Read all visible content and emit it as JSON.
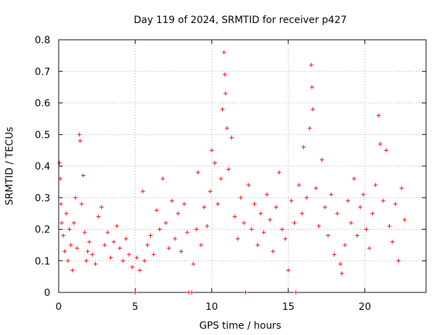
{
  "chart_data": {
    "type": "scatter",
    "title": "Day 119 of 2024, SRMTID for receiver p427",
    "xlabel": "GPS time / hours",
    "ylabel": "SRMTID / TECUs",
    "xlim": [
      0,
      24
    ],
    "ylim": [
      0,
      0.8
    ],
    "x_ticks": [
      0,
      5,
      10,
      15,
      20
    ],
    "y_ticks": [
      0,
      0.1,
      0.2,
      0.3,
      0.4,
      0.5,
      0.6,
      0.7,
      0.8
    ],
    "x_tick_labels": [
      "0",
      "5",
      "10",
      "15",
      "20"
    ],
    "y_tick_labels": [
      "0",
      "0.1",
      "0.2",
      "0.3",
      "0.4",
      "0.5",
      "0.6",
      "0.7",
      "0.8"
    ],
    "grid": true,
    "marker": "plus",
    "series": [
      {
        "name": "SRMTID",
        "color": "#ff0000",
        "points": [
          [
            0.05,
            0.41
          ],
          [
            0.1,
            0.36
          ],
          [
            0.15,
            0.28
          ],
          [
            0.2,
            0.22
          ],
          [
            0.3,
            0.18
          ],
          [
            0.4,
            0.13
          ],
          [
            0.5,
            0.25
          ],
          [
            0.6,
            0.1
          ],
          [
            0.7,
            0.2
          ],
          [
            0.8,
            0.15
          ],
          [
            0.9,
            0.07
          ],
          [
            1.0,
            0.22
          ],
          [
            1.1,
            0.3
          ],
          [
            1.2,
            0.14
          ],
          [
            1.35,
            0.5
          ],
          [
            1.4,
            0.48
          ],
          [
            1.5,
            0.28
          ],
          [
            1.6,
            0.37
          ],
          [
            1.7,
            0.19
          ],
          [
            1.8,
            0.1
          ],
          [
            1.9,
            0.13
          ],
          [
            2.0,
            0.16
          ],
          [
            2.2,
            0.12
          ],
          [
            2.4,
            0.09
          ],
          [
            2.6,
            0.24
          ],
          [
            2.8,
            0.27
          ],
          [
            3.0,
            0.15
          ],
          [
            3.2,
            0.19
          ],
          [
            3.4,
            0.11
          ],
          [
            3.6,
            0.16
          ],
          [
            3.8,
            0.21
          ],
          [
            4.0,
            0.14
          ],
          [
            4.2,
            0.1
          ],
          [
            4.4,
            0.17
          ],
          [
            4.6,
            0.12
          ],
          [
            4.8,
            0.08
          ],
          [
            5.0,
            0.0
          ],
          [
            5.1,
            0.11
          ],
          [
            5.3,
            0.07
          ],
          [
            5.5,
            0.32
          ],
          [
            5.6,
            0.1
          ],
          [
            5.8,
            0.15
          ],
          [
            6.0,
            0.18
          ],
          [
            6.2,
            0.12
          ],
          [
            6.4,
            0.26
          ],
          [
            6.6,
            0.2
          ],
          [
            6.8,
            0.36
          ],
          [
            7.0,
            0.22
          ],
          [
            7.2,
            0.14
          ],
          [
            7.4,
            0.29
          ],
          [
            7.6,
            0.17
          ],
          [
            7.8,
            0.25
          ],
          [
            8.0,
            0.13
          ],
          [
            8.2,
            0.28
          ],
          [
            8.4,
            0.19
          ],
          [
            8.5,
            0.0
          ],
          [
            8.7,
            0.0
          ],
          [
            8.8,
            0.09
          ],
          [
            9.0,
            0.2
          ],
          [
            9.1,
            0.38
          ],
          [
            9.3,
            0.15
          ],
          [
            9.5,
            0.27
          ],
          [
            9.7,
            0.21
          ],
          [
            9.9,
            0.32
          ],
          [
            10.0,
            0.45
          ],
          [
            10.2,
            0.41
          ],
          [
            10.4,
            0.28
          ],
          [
            10.6,
            0.36
          ],
          [
            10.7,
            0.58
          ],
          [
            10.8,
            0.76
          ],
          [
            10.85,
            0.69
          ],
          [
            10.9,
            0.63
          ],
          [
            11.0,
            0.52
          ],
          [
            11.1,
            0.39
          ],
          [
            11.3,
            0.49
          ],
          [
            11.5,
            0.24
          ],
          [
            11.7,
            0.17
          ],
          [
            11.9,
            0.3
          ],
          [
            12.1,
            0.22
          ],
          [
            12.2,
            0.0
          ],
          [
            12.4,
            0.34
          ],
          [
            12.6,
            0.2
          ],
          [
            12.8,
            0.28
          ],
          [
            13.0,
            0.15
          ],
          [
            13.2,
            0.25
          ],
          [
            13.4,
            0.19
          ],
          [
            13.6,
            0.31
          ],
          [
            13.8,
            0.23
          ],
          [
            14.0,
            0.13
          ],
          [
            14.2,
            0.27
          ],
          [
            14.4,
            0.38
          ],
          [
            14.6,
            0.2
          ],
          [
            14.8,
            0.17
          ],
          [
            15.0,
            0.07
          ],
          [
            15.2,
            0.29
          ],
          [
            15.4,
            0.22
          ],
          [
            15.5,
            0.0
          ],
          [
            15.7,
            0.34
          ],
          [
            15.9,
            0.25
          ],
          [
            16.0,
            0.46
          ],
          [
            16.2,
            0.3
          ],
          [
            16.4,
            0.52
          ],
          [
            16.5,
            0.72
          ],
          [
            16.55,
            0.65
          ],
          [
            16.6,
            0.58
          ],
          [
            16.8,
            0.33
          ],
          [
            17.0,
            0.21
          ],
          [
            17.2,
            0.42
          ],
          [
            17.4,
            0.27
          ],
          [
            17.6,
            0.18
          ],
          [
            17.8,
            0.31
          ],
          [
            18.0,
            0.12
          ],
          [
            18.2,
            0.25
          ],
          [
            18.4,
            0.09
          ],
          [
            18.5,
            0.06
          ],
          [
            18.7,
            0.15
          ],
          [
            18.9,
            0.29
          ],
          [
            19.1,
            0.22
          ],
          [
            19.3,
            0.36
          ],
          [
            19.5,
            0.18
          ],
          [
            19.7,
            0.27
          ],
          [
            19.9,
            0.31
          ],
          [
            20.1,
            0.2
          ],
          [
            20.3,
            0.14
          ],
          [
            20.5,
            0.25
          ],
          [
            20.7,
            0.34
          ],
          [
            20.9,
            0.56
          ],
          [
            21.0,
            0.47
          ],
          [
            21.2,
            0.29
          ],
          [
            21.4,
            0.45
          ],
          [
            21.6,
            0.21
          ],
          [
            21.8,
            0.16
          ],
          [
            22.0,
            0.28
          ],
          [
            22.2,
            0.1
          ],
          [
            22.4,
            0.33
          ],
          [
            22.6,
            0.23
          ]
        ]
      }
    ]
  }
}
